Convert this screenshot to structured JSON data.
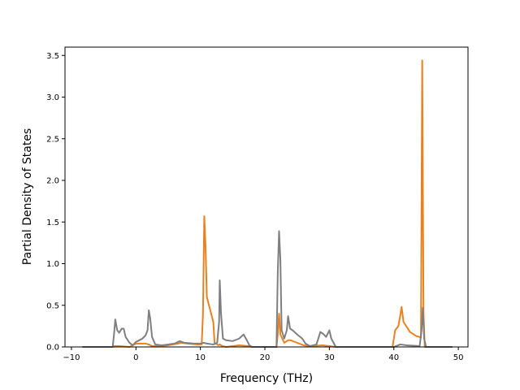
{
  "chart_data": {
    "type": "line",
    "title": "",
    "xlabel": "Frequency (THz)",
    "ylabel": "Partial Density of States",
    "xlim": [
      -11.0,
      51.5
    ],
    "ylim": [
      0.0,
      3.6
    ],
    "xticks": [
      -10,
      0,
      10,
      20,
      30,
      40,
      50
    ],
    "xtick_labels": [
      "−10",
      "0",
      "10",
      "20",
      "30",
      "40",
      "50"
    ],
    "yticks": [
      0.0,
      0.5,
      1.0,
      1.5,
      2.0,
      2.5,
      3.0,
      3.5
    ],
    "ytick_labels": [
      "0.0",
      "0.5",
      "1.0",
      "1.5",
      "2.0",
      "2.5",
      "3.0",
      "3.5"
    ],
    "grid": false,
    "legend": "none",
    "series": [
      {
        "color": "#e8811f",
        "points": [
          [
            -8.3,
            0.0
          ],
          [
            -3.6,
            0.0
          ],
          [
            -3.4,
            0.01
          ],
          [
            -2.5,
            0.01
          ],
          [
            -1.0,
            0.0
          ],
          [
            0.0,
            0.04
          ],
          [
            1.5,
            0.04
          ],
          [
            2.0,
            0.03
          ],
          [
            2.5,
            0.01
          ],
          [
            3.5,
            0.01
          ],
          [
            5.0,
            0.02
          ],
          [
            6.5,
            0.04
          ],
          [
            7.0,
            0.05
          ],
          [
            8.0,
            0.04
          ],
          [
            9.5,
            0.03
          ],
          [
            10.2,
            0.03
          ],
          [
            10.4,
            0.4
          ],
          [
            10.6,
            1.57
          ],
          [
            10.8,
            1.2
          ],
          [
            11.0,
            0.6
          ],
          [
            11.5,
            0.45
          ],
          [
            12.0,
            0.3
          ],
          [
            12.2,
            0.05
          ],
          [
            12.8,
            0.02
          ],
          [
            13.0,
            0.03
          ],
          [
            13.4,
            0.01
          ],
          [
            14.0,
            0.0
          ],
          [
            16.0,
            0.02
          ],
          [
            17.5,
            0.01
          ],
          [
            18.0,
            0.0
          ],
          [
            21.8,
            0.0
          ],
          [
            22.0,
            0.15
          ],
          [
            22.2,
            0.4
          ],
          [
            22.4,
            0.15
          ],
          [
            23.0,
            0.05
          ],
          [
            23.6,
            0.08
          ],
          [
            24.0,
            0.08
          ],
          [
            25.0,
            0.05
          ],
          [
            26.0,
            0.02
          ],
          [
            27.0,
            0.01
          ],
          [
            29.0,
            0.02
          ],
          [
            30.0,
            0.01
          ],
          [
            31.0,
            0.0
          ],
          [
            39.8,
            0.0
          ],
          [
            40.2,
            0.2
          ],
          [
            40.7,
            0.25
          ],
          [
            41.0,
            0.38
          ],
          [
            41.2,
            0.48
          ],
          [
            41.5,
            0.3
          ],
          [
            42.5,
            0.18
          ],
          [
            43.5,
            0.13
          ],
          [
            44.0,
            0.12
          ],
          [
            44.2,
            0.11
          ],
          [
            44.4,
            3.44
          ],
          [
            44.6,
            0.4
          ],
          [
            44.8,
            0.0
          ],
          [
            49.1,
            0.0
          ]
        ]
      },
      {
        "color": "#7f7f7f",
        "points": [
          [
            -8.3,
            0.0
          ],
          [
            -3.6,
            0.0
          ],
          [
            -3.4,
            0.15
          ],
          [
            -3.2,
            0.33
          ],
          [
            -2.9,
            0.2
          ],
          [
            -2.6,
            0.17
          ],
          [
            -2.2,
            0.22
          ],
          [
            -1.9,
            0.22
          ],
          [
            -1.6,
            0.12
          ],
          [
            -1.0,
            0.05
          ],
          [
            -0.5,
            0.02
          ],
          [
            0.0,
            0.06
          ],
          [
            0.5,
            0.08
          ],
          [
            1.0,
            0.1
          ],
          [
            1.5,
            0.14
          ],
          [
            1.8,
            0.2
          ],
          [
            2.0,
            0.44
          ],
          [
            2.2,
            0.35
          ],
          [
            2.5,
            0.12
          ],
          [
            3.0,
            0.03
          ],
          [
            4.0,
            0.02
          ],
          [
            5.0,
            0.03
          ],
          [
            6.0,
            0.04
          ],
          [
            6.8,
            0.07
          ],
          [
            7.5,
            0.05
          ],
          [
            9.0,
            0.04
          ],
          [
            10.0,
            0.04
          ],
          [
            10.5,
            0.05
          ],
          [
            11.0,
            0.04
          ],
          [
            12.0,
            0.03
          ],
          [
            12.6,
            0.05
          ],
          [
            12.9,
            0.3
          ],
          [
            13.0,
            0.8
          ],
          [
            13.2,
            0.4
          ],
          [
            13.5,
            0.1
          ],
          [
            14.0,
            0.08
          ],
          [
            15.0,
            0.07
          ],
          [
            16.0,
            0.1
          ],
          [
            16.7,
            0.15
          ],
          [
            17.2,
            0.08
          ],
          [
            17.6,
            0.02
          ],
          [
            18.0,
            0.0
          ],
          [
            21.8,
            0.0
          ],
          [
            22.0,
            0.9
          ],
          [
            22.2,
            1.39
          ],
          [
            22.4,
            1.05
          ],
          [
            22.6,
            0.2
          ],
          [
            23.0,
            0.1
          ],
          [
            23.4,
            0.2
          ],
          [
            23.6,
            0.37
          ],
          [
            23.9,
            0.22
          ],
          [
            24.3,
            0.2
          ],
          [
            25.0,
            0.15
          ],
          [
            25.8,
            0.1
          ],
          [
            26.3,
            0.04
          ],
          [
            27.0,
            0.01
          ],
          [
            28.0,
            0.03
          ],
          [
            28.6,
            0.18
          ],
          [
            29.0,
            0.16
          ],
          [
            29.5,
            0.12
          ],
          [
            30.0,
            0.2
          ],
          [
            30.3,
            0.1
          ],
          [
            31.0,
            0.0
          ],
          [
            40.0,
            0.0
          ],
          [
            41.0,
            0.03
          ],
          [
            42.0,
            0.02
          ],
          [
            44.0,
            0.01
          ],
          [
            44.3,
            0.2
          ],
          [
            44.5,
            0.47
          ],
          [
            44.7,
            0.1
          ],
          [
            45.0,
            0.0
          ],
          [
            49.1,
            0.0
          ]
        ]
      }
    ]
  }
}
